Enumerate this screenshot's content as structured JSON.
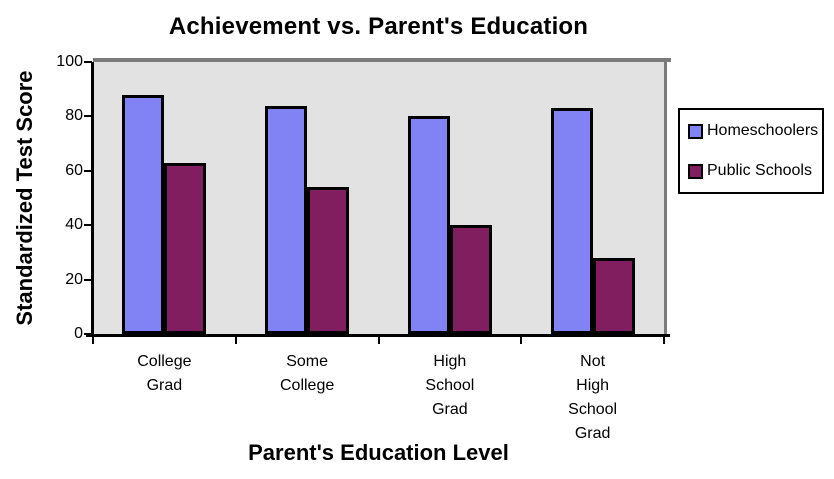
{
  "chart_data": {
    "type": "bar",
    "title": "Achievement vs. Parent's Education",
    "xlabel": "Parent's Education Level",
    "ylabel": "Standardized Test Score",
    "categories": [
      "College Grad",
      "Some College",
      "High School Grad",
      "Not High School Grad"
    ],
    "category_label_lines": [
      [
        "College",
        "Grad"
      ],
      [
        "Some",
        "College"
      ],
      [
        "High",
        "School",
        "Grad"
      ],
      [
        "Not",
        "High",
        "School",
        "Grad"
      ]
    ],
    "series": [
      {
        "name": "Homeschoolers",
        "color": "#8183F5",
        "values": [
          88,
          84,
          80,
          83
        ]
      },
      {
        "name": "Public Schools",
        "color": "#801E5F",
        "values": [
          63,
          54,
          40,
          28
        ]
      }
    ],
    "ylim": [
      0,
      100
    ],
    "yticks": [
      0,
      20,
      40,
      60,
      80,
      100
    ],
    "grid": false,
    "legend_position": "right",
    "plot_background": "#E2E2E2",
    "frame_color": "#7B7B7B",
    "axis_color": "#000000",
    "bar_border_color": "#000000"
  }
}
